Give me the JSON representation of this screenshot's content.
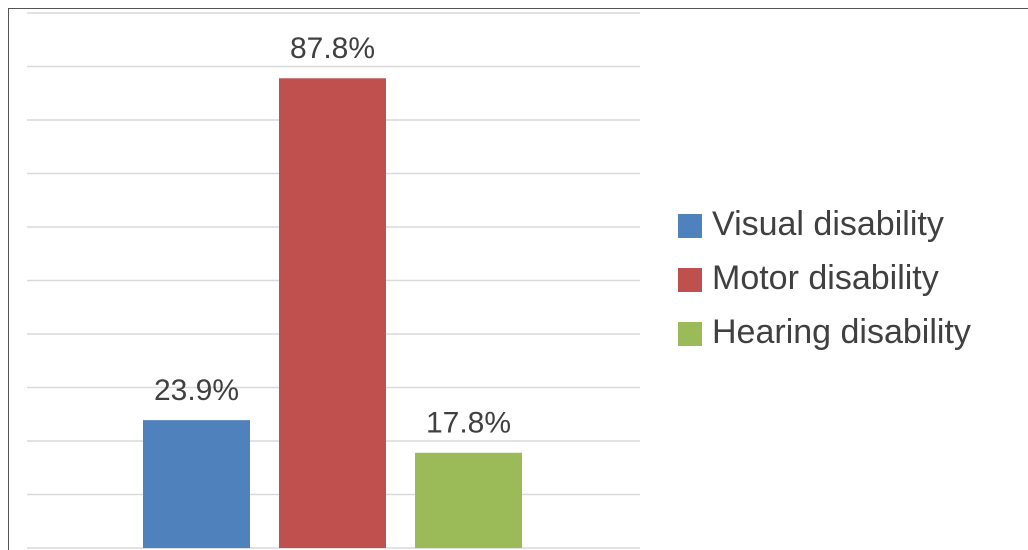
{
  "chart_data": {
    "type": "bar",
    "series": [
      {
        "name": "Visual disability",
        "color": "#4f81bd",
        "values": [
          23.9
        ],
        "value_labels": [
          "23.9%"
        ]
      },
      {
        "name": "Motor disability",
        "color": "#c0504d",
        "values": [
          87.8
        ],
        "value_labels": [
          "87.8%"
        ]
      },
      {
        "name": "Hearing disability",
        "color": "#9bbb59",
        "values": [
          17.8
        ],
        "value_labels": [
          "17.8%"
        ]
      }
    ],
    "ylim": [
      0,
      100
    ],
    "yticks": [
      0,
      10,
      20,
      30,
      40,
      50,
      60,
      70,
      80,
      90,
      100
    ],
    "grid": true,
    "legend": "right"
  }
}
